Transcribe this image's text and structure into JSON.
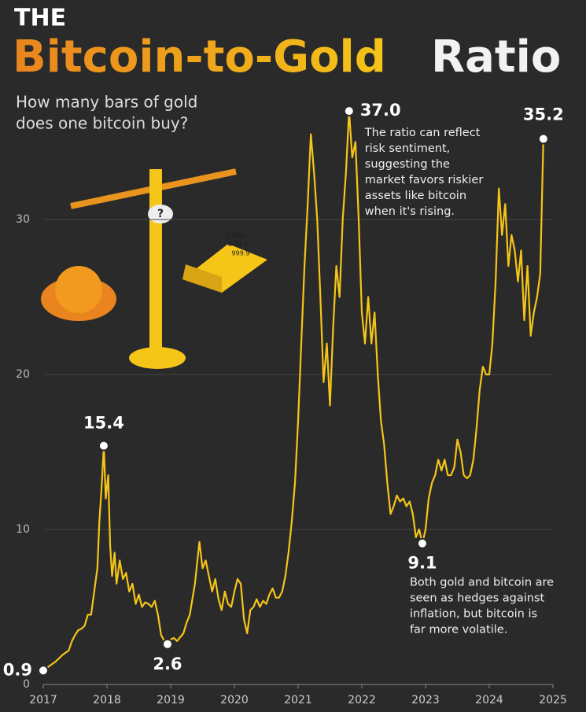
{
  "chart_data": {
    "type": "line",
    "title_prefix": "THE",
    "title": "Bitcoin-to-Gold",
    "title_end": "Ratio",
    "subtitle": [
      "How many bars of gold",
      "does one bitcoin buy?"
    ],
    "illustration_text": [
      "?",
      "FINE",
      "GOLD",
      "999.9"
    ],
    "xlim": [
      2017,
      2025
    ],
    "xticks": [
      2017,
      2018,
      2019,
      2020,
      2021,
      2022,
      2023,
      2024,
      2025
    ],
    "ylim": [
      0,
      38
    ],
    "yticks": [
      0,
      10,
      20,
      30
    ],
    "grid": true,
    "series": [
      {
        "color": "#f5c518",
        "x": [
          2017.0,
          2017.1,
          2017.2,
          2017.3,
          2017.4,
          2017.45,
          2017.5,
          2017.55,
          2017.6,
          2017.65,
          2017.7,
          2017.75,
          2017.8,
          2017.85,
          2017.88,
          2017.92,
          2017.95,
          2017.98,
          2018.02,
          2018.05,
          2018.08,
          2018.12,
          2018.15,
          2018.2,
          2018.25,
          2018.3,
          2018.35,
          2018.4,
          2018.45,
          2018.5,
          2018.55,
          2018.6,
          2018.65,
          2018.7,
          2018.75,
          2018.8,
          2018.85,
          2018.9,
          2018.95,
          2019.0,
          2019.05,
          2019.1,
          2019.2,
          2019.25,
          2019.3,
          2019.38,
          2019.45,
          2019.5,
          2019.55,
          2019.6,
          2019.65,
          2019.7,
          2019.75,
          2019.8,
          2019.85,
          2019.9,
          2019.95,
          2020.0,
          2020.05,
          2020.1,
          2020.15,
          2020.2,
          2020.25,
          2020.3,
          2020.35,
          2020.4,
          2020.45,
          2020.5,
          2020.55,
          2020.6,
          2020.65,
          2020.7,
          2020.75,
          2020.8,
          2020.85,
          2020.9,
          2020.95,
          2021.0,
          2021.05,
          2021.1,
          2021.15,
          2021.2,
          2021.25,
          2021.3,
          2021.35,
          2021.4,
          2021.45,
          2021.5,
          2021.55,
          2021.6,
          2021.65,
          2021.7,
          2021.75,
          2021.8,
          2021.85,
          2021.9,
          2021.95,
          2022.0,
          2022.05,
          2022.1,
          2022.15,
          2022.2,
          2022.25,
          2022.3,
          2022.35,
          2022.4,
          2022.45,
          2022.5,
          2022.55,
          2022.6,
          2022.65,
          2022.7,
          2022.75,
          2022.8,
          2022.85,
          2022.9,
          2022.95,
          2023.0,
          2023.05,
          2023.1,
          2023.15,
          2023.2,
          2023.25,
          2023.3,
          2023.35,
          2023.4,
          2023.45,
          2023.5,
          2023.55,
          2023.6,
          2023.65,
          2023.7,
          2023.75,
          2023.8,
          2023.85,
          2023.9,
          2023.95,
          2024.0,
          2024.05,
          2024.1,
          2024.15,
          2024.2,
          2024.25,
          2024.3,
          2024.35,
          2024.4,
          2024.45,
          2024.5,
          2024.55,
          2024.6,
          2024.65,
          2024.7,
          2024.75,
          2024.8,
          2024.85
        ],
        "values": [
          0.9,
          1.2,
          1.5,
          1.9,
          2.2,
          2.8,
          3.2,
          3.5,
          3.6,
          3.8,
          4.5,
          4.5,
          6.0,
          7.5,
          10.5,
          13.0,
          15.4,
          12,
          13.5,
          9,
          7,
          8.5,
          6.5,
          8.0,
          6.8,
          7.2,
          6.0,
          6.5,
          5.2,
          5.8,
          5.0,
          5.3,
          5.2,
          5.0,
          5.4,
          4.5,
          3.2,
          2.8,
          2.6,
          2.9,
          3.0,
          2.8,
          3.3,
          4.0,
          4.5,
          6.5,
          9.2,
          7.5,
          8.0,
          7.0,
          6.0,
          6.8,
          5.5,
          4.8,
          6.0,
          5.2,
          5.0,
          6.0,
          6.8,
          6.5,
          4.2,
          3.3,
          4.8,
          5.0,
          5.5,
          5.0,
          5.4,
          5.2,
          5.8,
          6.2,
          5.6,
          5.6,
          6.0,
          7.0,
          8.5,
          10.5,
          13,
          17,
          22,
          27,
          31,
          35.5,
          33,
          30,
          25,
          19.5,
          22,
          18,
          23,
          27,
          25,
          30,
          33,
          37.0,
          34,
          35,
          30,
          24,
          22,
          25,
          22,
          24,
          20,
          17,
          15.5,
          13,
          11,
          11.5,
          12.2,
          11.8,
          12.0,
          11.5,
          11.8,
          11.0,
          9.5,
          10,
          9.1,
          10,
          12,
          13.0,
          13.5,
          14.5,
          13.8,
          14.5,
          13.5,
          13.5,
          14.0,
          15.8,
          15.0,
          13.5,
          13.3,
          13.5,
          14.5,
          16.5,
          19.0,
          20.5,
          20.0,
          20,
          22,
          26,
          32,
          29,
          31,
          27,
          29,
          28,
          26,
          28,
          23.5,
          27,
          22.5,
          24,
          25,
          26.5,
          35.2
        ]
      }
    ],
    "annotations": [
      {
        "x": 2017.0,
        "y": 0.9,
        "label": "0.9"
      },
      {
        "x": 2017.95,
        "y": 15.4,
        "label": "15.4"
      },
      {
        "x": 2018.95,
        "y": 2.6,
        "label": "2.6"
      },
      {
        "x": 2021.8,
        "y": 37.0,
        "label": "37.0",
        "note": [
          "The ratio can reflect",
          "risk sentiment,",
          "suggesting the",
          "market favors riskier",
          "assets like bitcoin",
          "when it's rising."
        ]
      },
      {
        "x": 2022.95,
        "y": 9.1,
        "label": "9.1",
        "note": [
          "Both gold and bitcoin are",
          "seen as hedges against",
          "inflation, but bitcoin is",
          "far more volatile."
        ]
      },
      {
        "x": 2024.85,
        "y": 35.2,
        "label": "35.2"
      }
    ]
  }
}
